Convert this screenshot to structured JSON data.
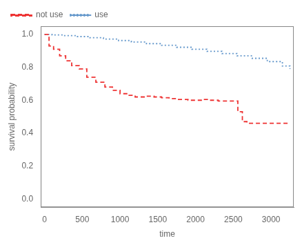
{
  "chart_data": {
    "type": "step",
    "xlabel": "time",
    "ylabel": "survival probability",
    "xlim": [
      -50,
      3300
    ],
    "ylim": [
      -0.05,
      1.05
    ],
    "xticks": [
      0,
      500,
      1000,
      1500,
      2000,
      2500,
      3000
    ],
    "yticks": [
      {
        "value": 0.0,
        "label": "0.0"
      },
      0.2,
      0.4,
      0.6,
      0.8,
      {
        "value": 1.0,
        "label": "1.0"
      }
    ],
    "grid": false,
    "legend": "upper left",
    "series": [
      {
        "name": "not use",
        "color": "#EE3333",
        "line_style": "dashed",
        "x": [
          0,
          60,
          120,
          200,
          280,
          360,
          460,
          560,
          680,
          800,
          900,
          1000,
          1100,
          1200,
          1350,
          1450,
          1550,
          1650,
          1750,
          1900,
          2000,
          2100,
          2200,
          2300,
          2500,
          2560,
          2620,
          2680,
          3250
        ],
        "values": [
          1.0,
          0.93,
          0.91,
          0.87,
          0.84,
          0.81,
          0.79,
          0.74,
          0.71,
          0.68,
          0.66,
          0.64,
          0.63,
          0.62,
          0.625,
          0.62,
          0.615,
          0.61,
          0.605,
          0.6,
          0.6,
          0.605,
          0.6,
          0.595,
          0.595,
          0.53,
          0.47,
          0.46,
          0.46
        ]
      },
      {
        "name": "use",
        "color": "#6699CC",
        "line_style": "dotted",
        "x": [
          0,
          100,
          250,
          420,
          600,
          780,
          980,
          1150,
          1350,
          1550,
          1750,
          1950,
          2150,
          2350,
          2550,
          2750,
          2950,
          3150,
          3250
        ],
        "values": [
          1.0,
          0.997,
          0.993,
          0.987,
          0.98,
          0.972,
          0.963,
          0.954,
          0.944,
          0.934,
          0.922,
          0.91,
          0.897,
          0.884,
          0.87,
          0.855,
          0.835,
          0.808,
          0.79
        ]
      }
    ]
  }
}
